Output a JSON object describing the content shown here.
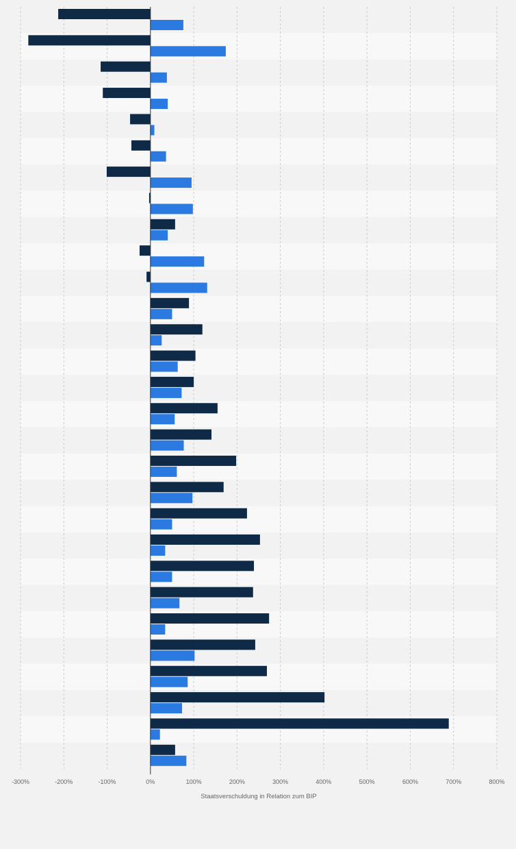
{
  "chart_data": {
    "type": "bar",
    "orientation": "horizontal",
    "title": "",
    "xlabel": "Staatsverschuldung in Relation zum BIP",
    "ylabel": "",
    "xlim": [
      -300,
      800
    ],
    "x_ticks": [
      -300,
      -200,
      -100,
      0,
      100,
      200,
      300,
      400,
      500,
      600,
      700,
      800
    ],
    "x_tick_labels": [
      "-300%",
      "-200%",
      "-100%",
      "0%",
      "100%",
      "200%",
      "300%",
      "400%",
      "500%",
      "600%",
      "700%",
      "800%"
    ],
    "grid": true,
    "legend": "none",
    "categories": [
      "",
      "",
      "",
      "",
      "",
      "",
      "",
      "",
      "",
      "",
      "",
      "",
      "",
      "",
      "",
      "",
      "",
      "",
      "",
      "",
      "",
      "",
      "",
      "",
      "",
      "",
      "",
      "",
      ""
    ],
    "series": [
      {
        "color": "#0f2a47",
        "values": [
          -213,
          -282,
          -115,
          -110,
          -47,
          -44,
          -101,
          -3,
          57,
          -25,
          -9,
          89,
          120,
          104,
          100,
          155,
          141,
          198,
          169,
          223,
          253,
          239,
          237,
          274,
          242,
          269,
          402,
          689,
          57
        ]
      },
      {
        "color": "#2a7ae2",
        "values": [
          76,
          174,
          38,
          40,
          9,
          36,
          95,
          98,
          40,
          124,
          131,
          50,
          26,
          63,
          72,
          56,
          77,
          61,
          97,
          50,
          34,
          50,
          67,
          34,
          102,
          86,
          73,
          22,
          83
        ]
      }
    ]
  }
}
